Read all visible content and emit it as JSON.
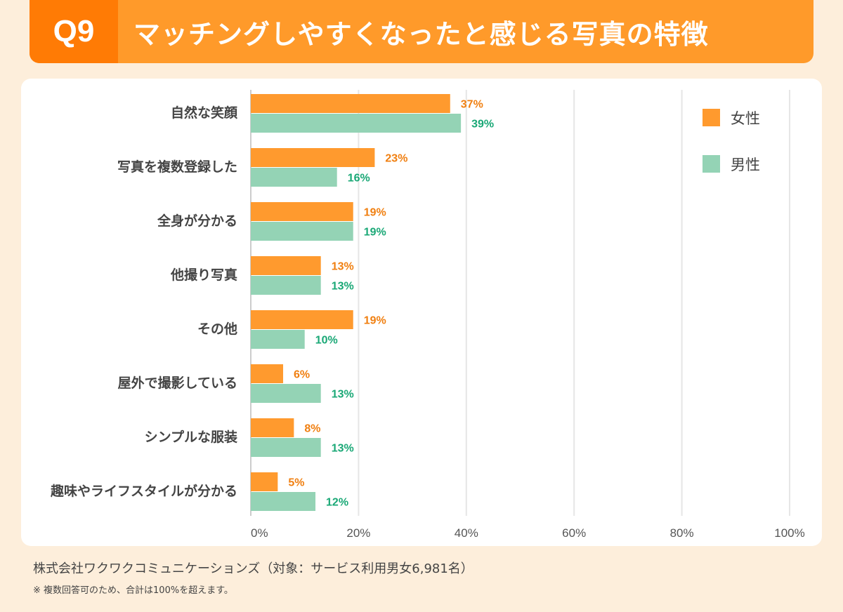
{
  "header": {
    "q": "Q9",
    "title": "マッチングしやすくなったと感じる写真の特徴"
  },
  "chart_data": {
    "type": "bar",
    "orientation": "horizontal",
    "categories": [
      "自然な笑顔",
      "写真を複数登録した",
      "全身が分かる",
      "他撮り写真",
      "その他",
      "屋外で撮影している",
      "シンプルな服装",
      "趣味やライフスタイルが分かる"
    ],
    "series": [
      {
        "name": "女性",
        "color": "#ff9a2e",
        "label_color": "#f07f10",
        "values": [
          37,
          23,
          19,
          13,
          19,
          6,
          8,
          5
        ]
      },
      {
        "name": "男性",
        "color": "#94d3b5",
        "label_color": "#1aa876",
        "values": [
          39,
          16,
          19,
          13,
          10,
          13,
          13,
          12
        ]
      }
    ],
    "xlim": [
      0,
      100
    ],
    "xticks": [
      "0%",
      "20%",
      "40%",
      "60%",
      "80%",
      "100%"
    ],
    "grid": true,
    "legend": "top-right"
  },
  "footer": {
    "source": "株式会社ワクワクコミュニケーションズ（対象：サービス利用男女6,981名）",
    "note": "※ 複数回答可のため、合計は100%を超えます。"
  }
}
